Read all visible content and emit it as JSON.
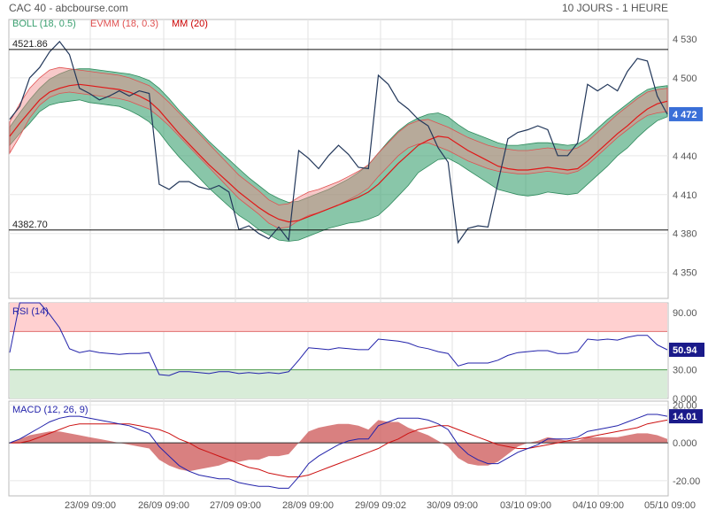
{
  "header": {
    "title": "CAC 40 - abcbourse.com",
    "period": "10 JOURS - 1 HEURE"
  },
  "x_axis": {
    "ticks": [
      "23/09 09:00",
      "26/09 09:00",
      "27/09 09:00",
      "28/09 09:00",
      "29/09 09:02",
      "30/09 09:00",
      "03/10 09:00",
      "04/10 09:00",
      "05/10 09:00"
    ]
  },
  "colors": {
    "price": "#22375a",
    "ma": "#e01818",
    "boll_fill": "#3aa070",
    "evmm_fill": "#f08888",
    "rsi": "#2222aa",
    "macd_line": "#2222aa",
    "signal_line": "#cc1111",
    "histogram": "#d06060"
  },
  "chart_data": [
    {
      "type": "line",
      "title": "CAC 40",
      "legend": [
        {
          "label": "BOLL (18, 0.5)",
          "color": "#3aa070"
        },
        {
          "label": "EVMM (18, 0.3)",
          "color": "#e05050"
        },
        {
          "label": "MM (20)",
          "color": "#cc0000"
        }
      ],
      "ylim": [
        4330,
        4545
      ],
      "yticks": [
        "4 530",
        "4 500",
        "4 470",
        "4 440",
        "4 410",
        "4 380",
        "4 350"
      ],
      "reference_lines": [
        {
          "label": "4521.86",
          "value": 4521.86
        },
        {
          "label": "4382.70",
          "value": 4382.7
        }
      ],
      "last_value_label": "4 472",
      "last_value": 4472,
      "series": [
        {
          "name": "price",
          "values": [
            4468,
            4478,
            4500,
            4508,
            4520,
            4528,
            4518,
            4492,
            4488,
            4483,
            4486,
            4490,
            4486,
            4490,
            4488,
            4418,
            4414,
            4420,
            4420,
            4416,
            4414,
            4417,
            4412,
            4383,
            4386,
            4380,
            4376,
            4385,
            4375,
            4444,
            4438,
            4430,
            4440,
            4448,
            4441,
            4431,
            4430,
            4502,
            4495,
            4482,
            4476,
            4468,
            4463,
            4446,
            4435,
            4373,
            4384,
            4386,
            4385,
            4419,
            4453,
            4458,
            4460,
            4463,
            4460,
            4440,
            4440,
            4450,
            4495,
            4490,
            4495,
            4490,
            4505,
            4515,
            4513,
            4486,
            4472
          ]
        },
        {
          "name": "mm",
          "values": [
            4455,
            4465,
            4474,
            4483,
            4489,
            4492,
            4494,
            4495,
            4494,
            4493,
            4492,
            4491,
            4489,
            4486,
            4482,
            4475,
            4466,
            4457,
            4449,
            4441,
            4433,
            4426,
            4419,
            4412,
            4406,
            4400,
            4395,
            4391,
            4389,
            4390,
            4393,
            4396,
            4399,
            4402,
            4405,
            4408,
            4412,
            4418,
            4426,
            4434,
            4441,
            4448,
            4452,
            4455,
            4454,
            4449,
            4444,
            4440,
            4436,
            4432,
            4430,
            4429,
            4429,
            4430,
            4431,
            4430,
            4429,
            4430,
            4436,
            4443,
            4450,
            4457,
            4463,
            4470,
            4476,
            4480,
            4482
          ]
        },
        {
          "name": "boll_upper",
          "values": [
            4462,
            4473,
            4483,
            4492,
            4499,
            4503,
            4506,
            4507,
            4507,
            4506,
            4505,
            4504,
            4503,
            4501,
            4498,
            4492,
            4484,
            4475,
            4467,
            4459,
            4451,
            4444,
            4437,
            4430,
            4423,
            4417,
            4411,
            4407,
            4404,
            4405,
            4408,
            4411,
            4414,
            4418,
            4422,
            4427,
            4433,
            4442,
            4451,
            4459,
            4465,
            4469,
            4472,
            4473,
            4470,
            4464,
            4459,
            4456,
            4453,
            4450,
            4448,
            4448,
            4449,
            4450,
            4450,
            4449,
            4448,
            4449,
            4454,
            4461,
            4468,
            4474,
            4480,
            4486,
            4491,
            4493,
            4494
          ]
        },
        {
          "name": "boll_lower",
          "values": [
            4448,
            4457,
            4465,
            4474,
            4479,
            4481,
            4482,
            4483,
            4481,
            4480,
            4479,
            4478,
            4475,
            4471,
            4466,
            4458,
            4448,
            4439,
            4431,
            4423,
            4415,
            4408,
            4401,
            4394,
            4389,
            4383,
            4379,
            4375,
            4374,
            4375,
            4378,
            4381,
            4384,
            4386,
            4388,
            4389,
            4391,
            4394,
            4401,
            4409,
            4417,
            4427,
            4432,
            4437,
            4438,
            4434,
            4429,
            4424,
            4419,
            4414,
            4412,
            4410,
            4409,
            4410,
            4412,
            4411,
            4410,
            4411,
            4418,
            4425,
            4432,
            4440,
            4446,
            4454,
            4461,
            4467,
            4470
          ]
        },
        {
          "name": "evmm_upper",
          "values": [
            4466,
            4480,
            4492,
            4500,
            4506,
            4508,
            4507,
            4506,
            4505,
            4504,
            4503,
            4502,
            4500,
            4497,
            4494,
            4488,
            4481,
            4473,
            4465,
            4457,
            4449,
            4441,
            4433,
            4425,
            4419,
            4413,
            4406,
            4402,
            4403,
            4408,
            4412,
            4414,
            4417,
            4420,
            4424,
            4428,
            4433,
            4442,
            4450,
            4458,
            4464,
            4467,
            4468,
            4465,
            4462,
            4458,
            4454,
            4451,
            4448,
            4446,
            4445,
            4444,
            4444,
            4445,
            4446,
            4445,
            4444,
            4446,
            4451,
            4458,
            4465,
            4472,
            4478,
            4484,
            4489,
            4491,
            4492
          ]
        },
        {
          "name": "evmm_lower",
          "values": [
            4442,
            4455,
            4469,
            4479,
            4485,
            4488,
            4489,
            4488,
            4487,
            4486,
            4485,
            4484,
            4482,
            4479,
            4476,
            4470,
            4463,
            4455,
            4447,
            4439,
            4431,
            4423,
            4415,
            4407,
            4401,
            4395,
            4388,
            4384,
            4385,
            4390,
            4394,
            4396,
            4399,
            4402,
            4406,
            4410,
            4415,
            4424,
            4432,
            4440,
            4446,
            4449,
            4450,
            4447,
            4444,
            4440,
            4436,
            4433,
            4430,
            4428,
            4427,
            4426,
            4426,
            4427,
            4428,
            4427,
            4426,
            4428,
            4433,
            4440,
            4447,
            4454,
            4460,
            4466,
            4471,
            4473,
            4474
          ]
        }
      ]
    },
    {
      "type": "line",
      "title": "RSI (14)",
      "ylim": [
        0,
        100
      ],
      "yticks": [
        "90.00",
        "30.00",
        "0.000"
      ],
      "zones": [
        {
          "from": 70,
          "to": 100,
          "color": "#ffd0d0"
        },
        {
          "from": 0,
          "to": 30,
          "color": "#d8ecd8"
        }
      ],
      "last_value_label": "50.94",
      "last_value": 50.94,
      "series": [
        {
          "name": "rsi",
          "values": [
            48,
            100,
            100,
            100,
            88,
            74,
            52,
            48,
            50,
            48,
            47,
            46,
            47,
            47,
            48,
            25,
            24,
            28,
            28,
            27,
            26,
            28,
            28,
            26,
            27,
            26,
            27,
            26,
            28,
            40,
            53,
            52,
            51,
            53,
            52,
            51,
            51,
            62,
            61,
            60,
            58,
            54,
            52,
            49,
            47,
            34,
            37,
            37,
            37,
            40,
            45,
            48,
            49,
            50,
            50,
            47,
            47,
            49,
            62,
            61,
            62,
            61,
            64,
            66,
            66,
            56,
            50.94
          ]
        }
      ]
    },
    {
      "type": "line",
      "title": "MACD (12, 26, 9)",
      "ylim": [
        -28,
        22
      ],
      "yticks": [
        "20.00",
        "0.000",
        "-20.00"
      ],
      "last_value_label": "14.01",
      "last_value": 14.01,
      "series": [
        {
          "name": "macd",
          "values": [
            0,
            2,
            5,
            8,
            11,
            13,
            14,
            14,
            13,
            12,
            11,
            10,
            9,
            7,
            5,
            -2,
            -7,
            -12,
            -15,
            -17,
            -18,
            -19,
            -19,
            -21,
            -22,
            -23,
            -23,
            -24,
            -24,
            -18,
            -11,
            -7,
            -4,
            -1,
            1,
            2,
            2,
            9,
            11,
            13,
            13,
            13,
            12,
            10,
            7,
            -1,
            -6,
            -9,
            -11,
            -11,
            -8,
            -5,
            -3,
            -1,
            2,
            2,
            2,
            3,
            6,
            7,
            8,
            9,
            11,
            13,
            15,
            15,
            14.01
          ]
        },
        {
          "name": "signal",
          "values": [
            0,
            0,
            1,
            3,
            5,
            7,
            9,
            10,
            10,
            10,
            10,
            10,
            10,
            9,
            8,
            7,
            5,
            2,
            0,
            -3,
            -5,
            -7,
            -9,
            -11,
            -13,
            -14,
            -16,
            -17,
            -18,
            -18,
            -17,
            -15,
            -13,
            -11,
            -9,
            -7,
            -5,
            -3,
            0,
            2,
            5,
            7,
            8,
            9,
            9,
            7,
            5,
            3,
            1,
            -1,
            -2,
            -3,
            -3,
            -2,
            -1,
            0,
            1,
            2,
            3,
            4,
            5,
            6,
            7,
            8,
            10,
            11,
            12
          ]
        },
        {
          "name": "histogram",
          "values": [
            0,
            2,
            4,
            5,
            6,
            6,
            5,
            4,
            3,
            2,
            1,
            0,
            -1,
            -2,
            -3,
            -9,
            -12,
            -14,
            -15,
            -14,
            -13,
            -12,
            -10,
            -10,
            -9,
            -9,
            -7,
            -7,
            -6,
            0,
            6,
            8,
            9,
            10,
            10,
            9,
            7,
            12,
            11,
            11,
            8,
            6,
            4,
            1,
            -2,
            -8,
            -11,
            -12,
            -12,
            -10,
            -6,
            -2,
            0,
            1,
            3,
            2,
            1,
            1,
            3,
            3,
            3,
            3,
            4,
            5,
            5,
            4,
            2
          ]
        }
      ]
    }
  ]
}
